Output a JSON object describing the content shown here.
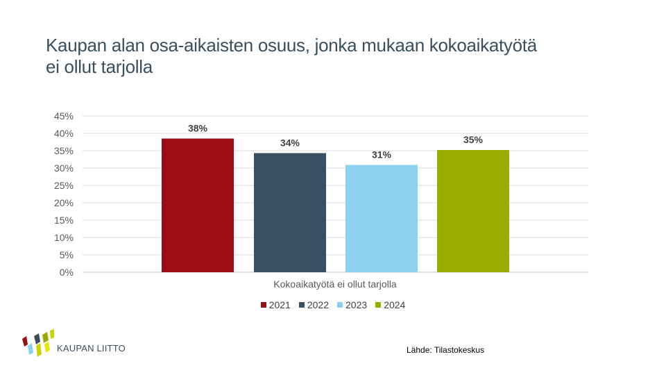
{
  "title": {
    "line1": "Kaupan alan osa-aikaisten osuus, jonka mukaan kokoaikatyötä",
    "line2": "ei ollut tarjolla"
  },
  "chart_data": {
    "type": "bar",
    "title": "",
    "xlabel": "Kokoaikatyötä ei ollut tarjolla",
    "ylabel": "",
    "ylim": [
      0,
      45
    ],
    "yticks": [
      "0%",
      "5%",
      "10%",
      "15%",
      "20%",
      "25%",
      "30%",
      "35%",
      "40%",
      "45%"
    ],
    "grid": true,
    "legend_position": "bottom",
    "categories": [
      "Kokoaikatyötä ei ollut tarjolla"
    ],
    "series": [
      {
        "name": "2021",
        "values": [
          38.5
        ],
        "label": "38%",
        "color": "#9b0d14"
      },
      {
        "name": "2022",
        "values": [
          34.3
        ],
        "label": "34%",
        "color": "#3a5060"
      },
      {
        "name": "2023",
        "values": [
          30.9
        ],
        "label": "31%",
        "color": "#8dd0f0"
      },
      {
        "name": "2024",
        "values": [
          35.2
        ],
        "label": "35%",
        "color": "#9aab00"
      }
    ]
  },
  "source": "Lähde: Tilastokeskus",
  "logo": {
    "text": "KAUPAN LIITTO",
    "icon": "kaupan-liitto-logo-icon",
    "colors": [
      "#9b0d14",
      "#3a4f5e",
      "#8dd0f0",
      "#c8d400",
      "#e6e600"
    ]
  }
}
